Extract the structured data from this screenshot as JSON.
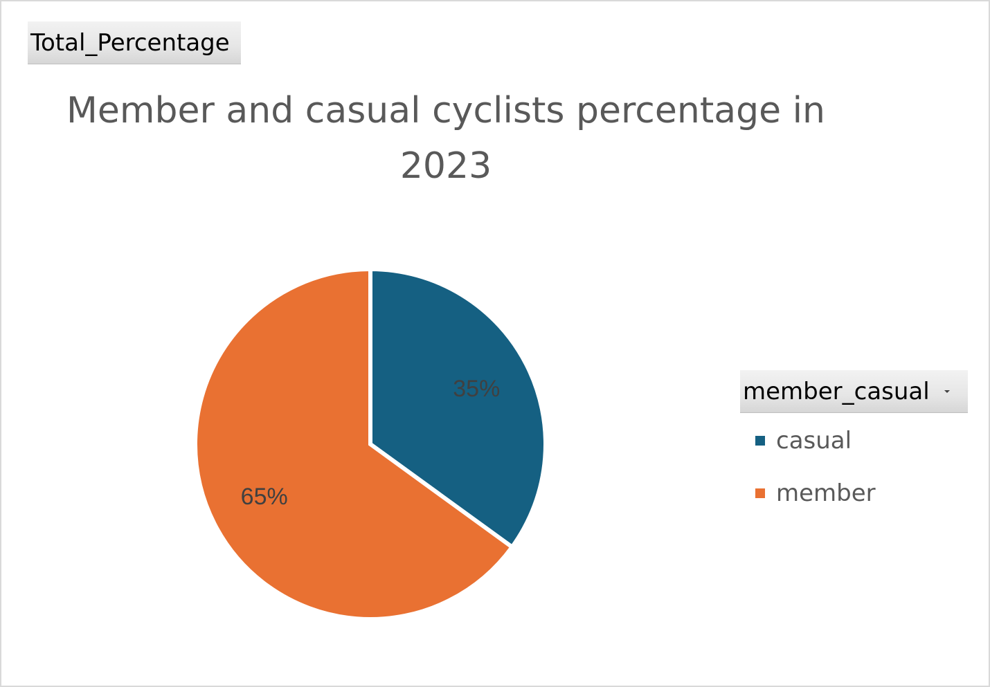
{
  "field_buttons": {
    "values_field": "Total_Percentage",
    "legend_field": "member_casual"
  },
  "chart_data": {
    "type": "pie",
    "title": "Member and casual cyclists percentage in 2023",
    "categories": [
      "casual",
      "member"
    ],
    "values": [
      35,
      65
    ],
    "data_labels": [
      "35%",
      "65%"
    ],
    "colors": [
      "#156082",
      "#E97132"
    ],
    "legend": "right",
    "start_angle_deg": 0,
    "direction": "clockwise"
  }
}
